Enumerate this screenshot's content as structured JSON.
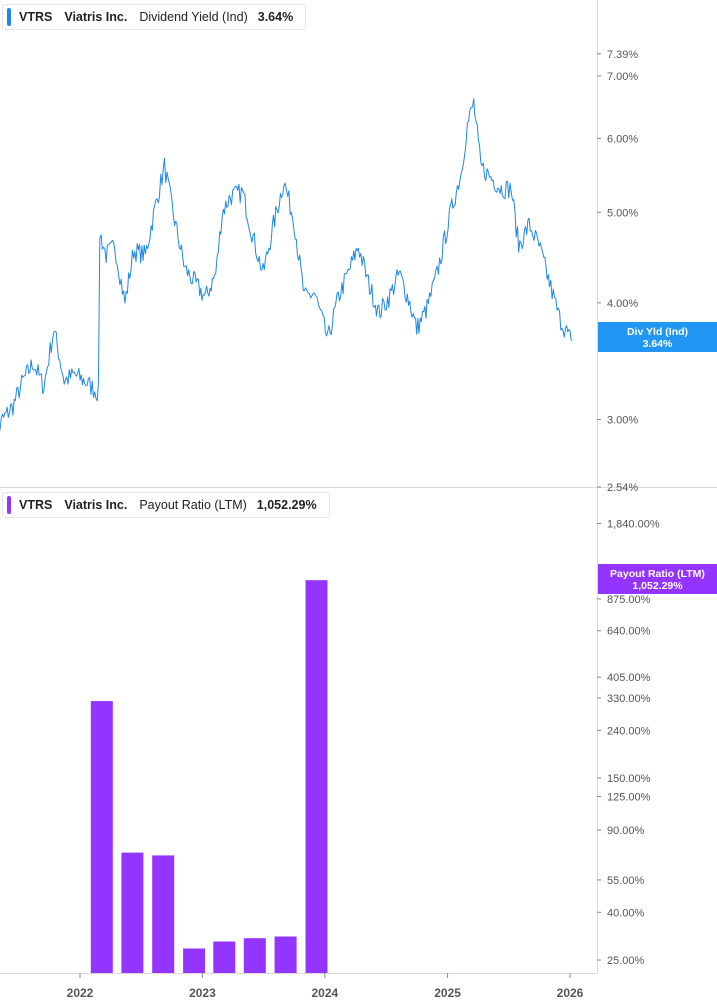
{
  "legend_top": {
    "symbol": "VTRS",
    "company": "Viatris Inc.",
    "metric": "Dividend Yield (Ind)",
    "value": "3.64%",
    "color": "#1e88e5"
  },
  "legend_bottom": {
    "symbol": "VTRS",
    "company": "Viatris Inc.",
    "metric": "Payout Ratio (LTM)",
    "value": "1,052.29%",
    "color": "#9334ff"
  },
  "flag_top": {
    "label": "Div Yld (Ind)",
    "value": "3.64%",
    "color": "#2196f3"
  },
  "flag_bottom": {
    "label": "Payout Ratio (LTM)",
    "value": "1,052.29%",
    "color": "#9334ff"
  },
  "chart_data": [
    {
      "type": "line",
      "scale": "log",
      "ylim": [
        2.54,
        7.8
      ],
      "y_ticks": [
        "7.39%",
        "7.00%",
        "6.00%",
        "5.00%",
        "4.00%",
        "3.00%",
        "2.54%"
      ],
      "y_tick_values": [
        7.39,
        7.0,
        6.0,
        5.0,
        4.0,
        3.0,
        2.54
      ],
      "series": [
        {
          "name": "Dividend Yield (Ind)",
          "points": [
            [
              "2021-04-15",
              2.8
            ],
            [
              "2021-05-15",
              3.0
            ],
            [
              "2021-06-15",
              3.1
            ],
            [
              "2021-07-15",
              3.3
            ],
            [
              "2021-08-15",
              3.45
            ],
            [
              "2021-09-15",
              3.25
            ],
            [
              "2021-10-15",
              3.75
            ],
            [
              "2021-11-15",
              3.3
            ],
            [
              "2021-12-15",
              3.35
            ],
            [
              "2022-01-15",
              3.3
            ],
            [
              "2022-02-25",
              3.2
            ],
            [
              "2022-03-01",
              4.75
            ],
            [
              "2022-03-20",
              4.5
            ],
            [
              "2022-04-15",
              4.6
            ],
            [
              "2022-05-15",
              4.0
            ],
            [
              "2022-06-10",
              4.55
            ],
            [
              "2022-07-15",
              4.5
            ],
            [
              "2022-08-15",
              5.1
            ],
            [
              "2022-09-10",
              5.6
            ],
            [
              "2022-10-10",
              4.9
            ],
            [
              "2022-11-10",
              4.35
            ],
            [
              "2022-12-10",
              4.2
            ],
            [
              "2023-01-10",
              4.05
            ],
            [
              "2023-02-10",
              4.3
            ],
            [
              "2023-03-01",
              5.0
            ],
            [
              "2023-03-25",
              5.2
            ],
            [
              "2023-05-01",
              5.25
            ],
            [
              "2023-06-01",
              4.7
            ],
            [
              "2023-07-01",
              4.3
            ],
            [
              "2023-08-01",
              4.85
            ],
            [
              "2023-09-01",
              5.4
            ],
            [
              "2023-10-01",
              4.9
            ],
            [
              "2023-11-01",
              4.05
            ],
            [
              "2023-12-01",
              4.1
            ],
            [
              "2024-01-10",
              3.65
            ],
            [
              "2024-02-10",
              4.05
            ],
            [
              "2024-03-10",
              4.3
            ],
            [
              "2024-04-10",
              4.6
            ],
            [
              "2024-05-10",
              4.2
            ],
            [
              "2024-06-10",
              3.9
            ],
            [
              "2024-07-10",
              4.05
            ],
            [
              "2024-08-10",
              4.3
            ],
            [
              "2024-09-10",
              4.0
            ],
            [
              "2024-10-01",
              3.75
            ],
            [
              "2024-11-01",
              3.95
            ],
            [
              "2024-12-01",
              4.3
            ],
            [
              "2025-01-10",
              5.0
            ],
            [
              "2025-02-10",
              5.5
            ],
            [
              "2025-03-01",
              6.2
            ],
            [
              "2025-03-20",
              6.55
            ],
            [
              "2025-04-10",
              5.6
            ],
            [
              "2025-05-10",
              5.45
            ],
            [
              "2025-06-10",
              5.3
            ],
            [
              "2025-07-10",
              5.3
            ],
            [
              "2025-08-01",
              4.6
            ],
            [
              "2025-09-01",
              4.85
            ],
            [
              "2025-10-01",
              4.6
            ],
            [
              "2025-11-01",
              4.2
            ],
            [
              "2025-12-01",
              3.85
            ],
            [
              "2026-01-05",
              3.64
            ]
          ]
        }
      ]
    },
    {
      "type": "bar",
      "scale": "log",
      "ylim": [
        22,
        2100
      ],
      "y_ticks": [
        "1,840.00%",
        "875.00%",
        "640.00%",
        "405.00%",
        "330.00%",
        "240.00%",
        "150.00%",
        "125.00%",
        "90.00%",
        "55.00%",
        "40.00%",
        "25.00%"
      ],
      "y_tick_values": [
        1840,
        875,
        640,
        405,
        330,
        240,
        150,
        125,
        90,
        55,
        40,
        25
      ],
      "series": [
        {
          "name": "Payout Ratio (LTM)",
          "points": [
            [
              "2022-03-31",
              320
            ],
            [
              "2022-06-30",
              72
            ],
            [
              "2022-09-30",
              70
            ],
            [
              "2022-12-31",
              28
            ],
            [
              "2023-03-31",
              30
            ],
            [
              "2023-06-30",
              31
            ],
            [
              "2023-09-30",
              31.5
            ],
            [
              "2023-12-31",
              1052.29
            ]
          ]
        }
      ]
    }
  ],
  "x_axis": {
    "labels": [
      "2022",
      "2023",
      "2024",
      "2025",
      "2026"
    ],
    "dates": [
      "2022-01-01",
      "2023-01-01",
      "2024-01-01",
      "2025-01-01",
      "2026-01-01"
    ]
  }
}
